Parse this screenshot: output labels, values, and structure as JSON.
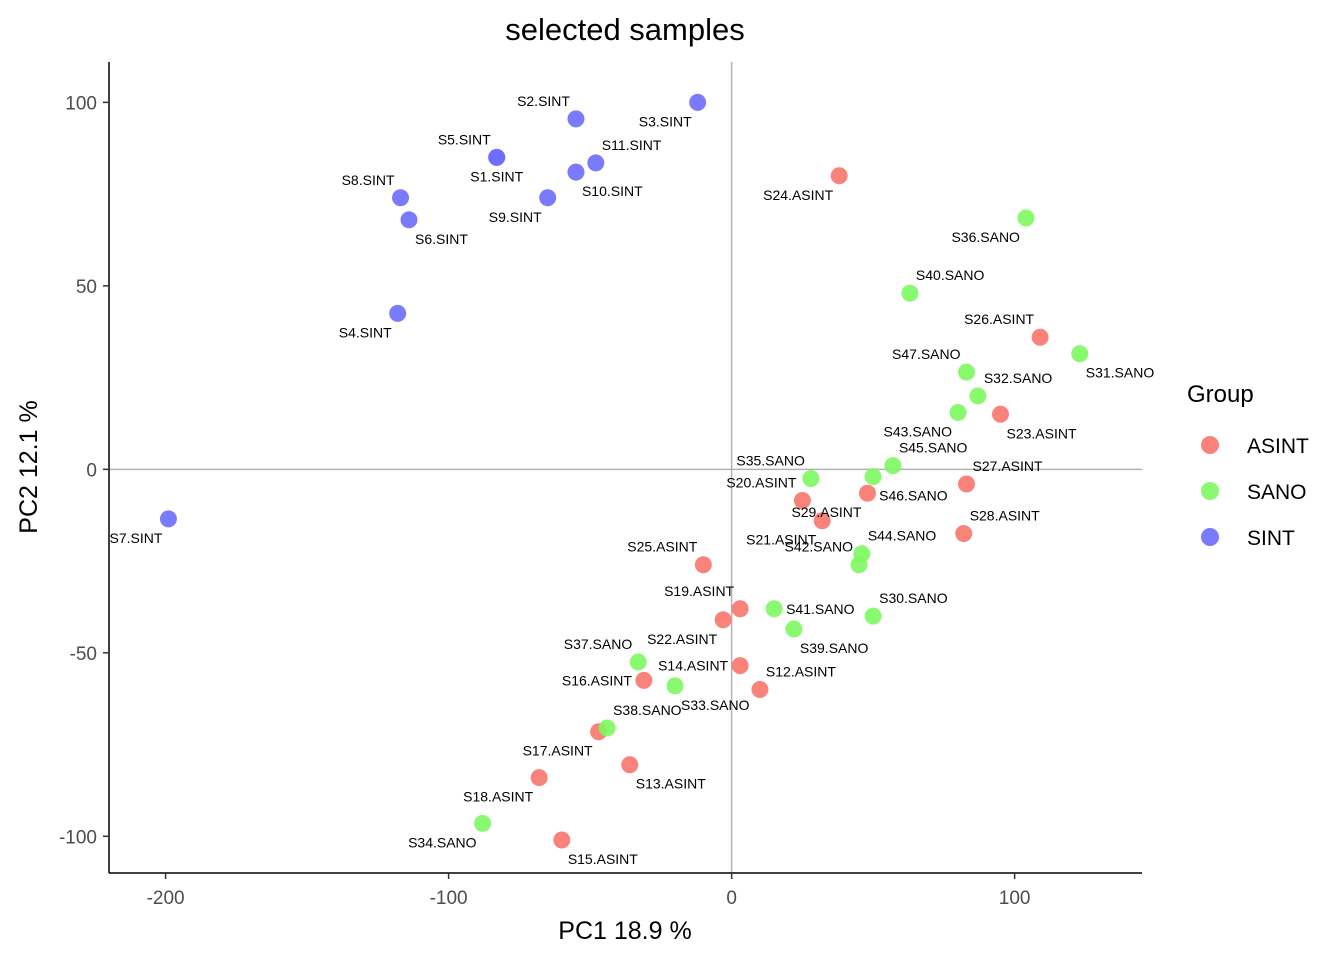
{
  "chart_data": {
    "type": "scatter",
    "title": "selected samples",
    "xlabel": "PC1 18.9 %",
    "ylabel": "PC2 12.1 %",
    "xlim": [
      -220,
      145
    ],
    "ylim": [
      -110,
      111
    ],
    "xticks": [
      -200,
      -100,
      0,
      100
    ],
    "yticks": [
      100,
      50,
      0,
      -50,
      -100
    ],
    "reference_lines": {
      "x": 0,
      "y": 0
    },
    "grid": false,
    "legend": {
      "title": "Group",
      "position": "right",
      "entries": [
        {
          "name": "ASINT",
          "color": "#f8766d"
        },
        {
          "name": "SANO",
          "color": "#7cf860"
        },
        {
          "name": "SINT",
          "color": "#6b6bff"
        }
      ]
    },
    "points": [
      {
        "label": "S1.SINT",
        "group": "SINT",
        "x": -83,
        "y": 85,
        "lp": "below"
      },
      {
        "label": "S2.SINT",
        "group": "SINT",
        "x": -55,
        "y": 95.5,
        "lp": "above-left"
      },
      {
        "label": "S3.SINT",
        "group": "SINT",
        "x": -12,
        "y": 100,
        "lp": "below-left"
      },
      {
        "label": "S4.SINT",
        "group": "SINT",
        "x": -118,
        "y": 42.5,
        "lp": "below-left"
      },
      {
        "label": "S5.SINT",
        "group": "SINT",
        "x": -83,
        "y": 85,
        "lp": "above-left"
      },
      {
        "label": "S6.SINT",
        "group": "SINT",
        "x": -114,
        "y": 68,
        "lp": "below-right"
      },
      {
        "label": "S7.SINT",
        "group": "SINT",
        "x": -199,
        "y": -13.5,
        "lp": "below-left"
      },
      {
        "label": "S8.SINT",
        "group": "SINT",
        "x": -117,
        "y": 74,
        "lp": "above-left"
      },
      {
        "label": "S9.SINT",
        "group": "SINT",
        "x": -65,
        "y": 74,
        "lp": "below-left"
      },
      {
        "label": "S10.SINT",
        "group": "SINT",
        "x": -55,
        "y": 81,
        "lp": "below-right"
      },
      {
        "label": "S11.SINT",
        "group": "SINT",
        "x": -48,
        "y": 83.5,
        "lp": "above-right"
      },
      {
        "label": "S12.ASINT",
        "group": "ASINT",
        "x": 10,
        "y": -60,
        "lp": "above-right"
      },
      {
        "label": "S13.ASINT",
        "group": "ASINT",
        "x": -36,
        "y": -80.5,
        "lp": "below-right"
      },
      {
        "label": "S14.ASINT",
        "group": "ASINT",
        "x": 3,
        "y": -53.5,
        "lp": "left"
      },
      {
        "label": "S15.ASINT",
        "group": "ASINT",
        "x": -60,
        "y": -101,
        "lp": "below-right"
      },
      {
        "label": "S16.ASINT",
        "group": "ASINT",
        "x": -31,
        "y": -57.5,
        "lp": "left"
      },
      {
        "label": "S17.ASINT",
        "group": "ASINT",
        "x": -47,
        "y": -71.5,
        "lp": "below-left"
      },
      {
        "label": "S18.ASINT",
        "group": "ASINT",
        "x": -68,
        "y": -84,
        "lp": "below-left"
      },
      {
        "label": "S19.ASINT",
        "group": "ASINT",
        "x": 3,
        "y": -38,
        "lp": "above-left"
      },
      {
        "label": "S20.ASINT",
        "group": "ASINT",
        "x": 25,
        "y": -8.5,
        "lp": "above-left"
      },
      {
        "label": "S21.ASINT",
        "group": "ASINT",
        "x": 32,
        "y": -14,
        "lp": "below-left"
      },
      {
        "label": "S22.ASINT",
        "group": "ASINT",
        "x": -3,
        "y": -41,
        "lp": "below-left"
      },
      {
        "label": "S23.ASINT",
        "group": "ASINT",
        "x": 95,
        "y": 15,
        "lp": "below-right"
      },
      {
        "label": "S24.ASINT",
        "group": "ASINT",
        "x": 38,
        "y": 80,
        "lp": "below-left"
      },
      {
        "label": "S25.ASINT",
        "group": "ASINT",
        "x": -10,
        "y": -26,
        "lp": "above-left"
      },
      {
        "label": "S26.ASINT",
        "group": "ASINT",
        "x": 109,
        "y": 36,
        "lp": "above-left"
      },
      {
        "label": "S27.ASINT",
        "group": "ASINT",
        "x": 83,
        "y": -4,
        "lp": "above-right"
      },
      {
        "label": "S28.ASINT",
        "group": "ASINT",
        "x": 82,
        "y": -17.5,
        "lp": "above-right"
      },
      {
        "label": "S29.ASINT",
        "group": "ASINT",
        "x": 48,
        "y": -6.5,
        "lp": "below-left"
      },
      {
        "label": "S30.SANO",
        "group": "SANO",
        "x": 50,
        "y": -40,
        "lp": "above-right"
      },
      {
        "label": "S31.SANO",
        "group": "SANO",
        "x": 123,
        "y": 31.5,
        "lp": "below-right"
      },
      {
        "label": "S32.SANO",
        "group": "SANO",
        "x": 87,
        "y": 20,
        "lp": "above-right"
      },
      {
        "label": "S33.SANO",
        "group": "SANO",
        "x": -20,
        "y": -59,
        "lp": "below-right"
      },
      {
        "label": "S34.SANO",
        "group": "SANO",
        "x": -88,
        "y": -96.5,
        "lp": "below-left"
      },
      {
        "label": "S35.SANO",
        "group": "SANO",
        "x": 28,
        "y": -2.5,
        "lp": "above-left"
      },
      {
        "label": "S36.SANO",
        "group": "SANO",
        "x": 104,
        "y": 68.5,
        "lp": "below-left"
      },
      {
        "label": "S37.SANO",
        "group": "SANO",
        "x": -33,
        "y": -52.5,
        "lp": "above-left"
      },
      {
        "label": "S38.SANO",
        "group": "SANO",
        "x": -44,
        "y": -70.5,
        "lp": "above-right"
      },
      {
        "label": "S39.SANO",
        "group": "SANO",
        "x": 22,
        "y": -43.5,
        "lp": "below-right"
      },
      {
        "label": "S40.SANO",
        "group": "SANO",
        "x": 63,
        "y": 48,
        "lp": "above-right"
      },
      {
        "label": "S41.SANO",
        "group": "SANO",
        "x": 15,
        "y": -38,
        "lp": "right"
      },
      {
        "label": "S42.SANO",
        "group": "SANO",
        "x": 45,
        "y": -26,
        "lp": "above-left"
      },
      {
        "label": "S43.SANO",
        "group": "SANO",
        "x": 80,
        "y": 15.5,
        "lp": "below-left"
      },
      {
        "label": "S44.SANO",
        "group": "SANO",
        "x": 46,
        "y": -23,
        "lp": "above-right"
      },
      {
        "label": "S45.SANO",
        "group": "SANO",
        "x": 57,
        "y": 1,
        "lp": "above-right"
      },
      {
        "label": "S46.SANO",
        "group": "SANO",
        "x": 50,
        "y": -2,
        "lp": "below-right"
      },
      {
        "label": "S47.SANO",
        "group": "SANO",
        "x": 83,
        "y": 26.5,
        "lp": "above-left"
      }
    ]
  }
}
